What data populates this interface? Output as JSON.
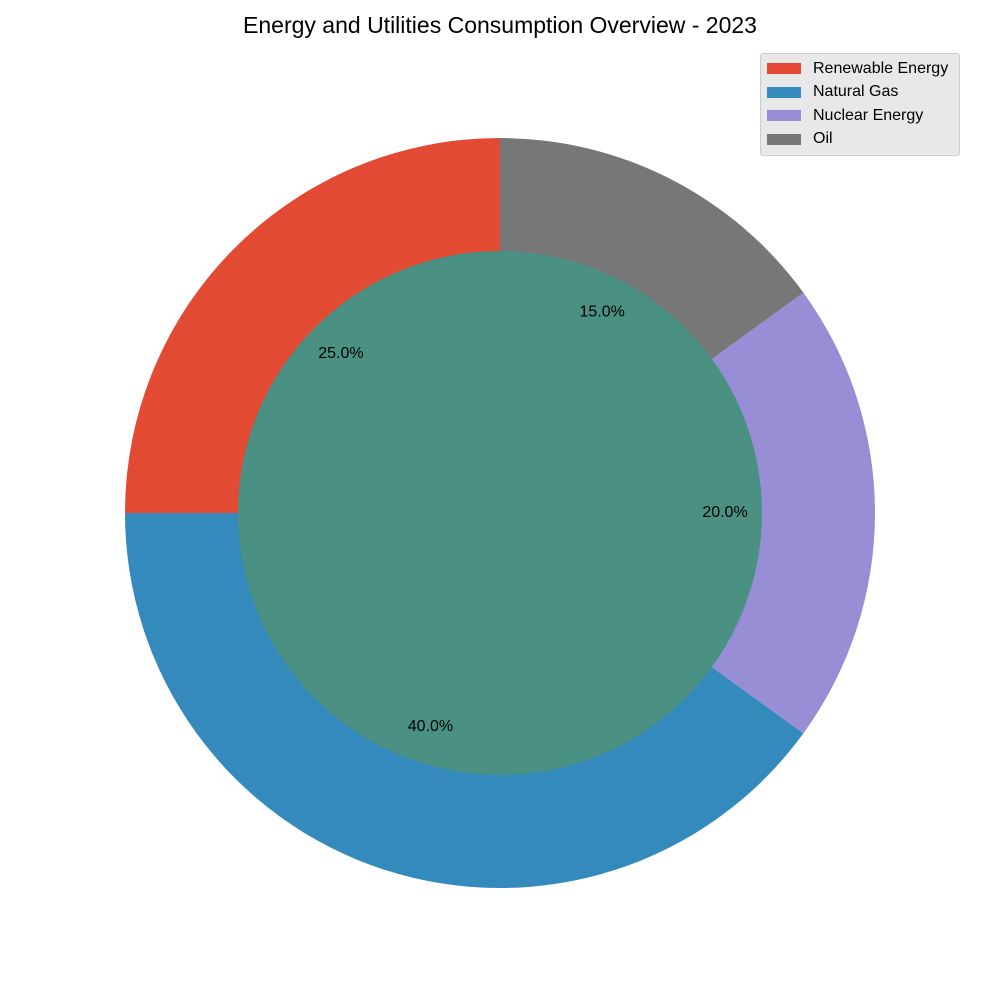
{
  "chart_data": {
    "type": "pie",
    "title": "Energy and Utilities Consumption Overview - 2023",
    "slices": [
      {
        "label": "Renewable Energy",
        "value": 25.0,
        "pct_label": "25.0%",
        "color": "#E24A33"
      },
      {
        "label": "Natural Gas",
        "value": 40.0,
        "pct_label": "40.0%",
        "color": "#348ABD"
      },
      {
        "label": "Nuclear Energy",
        "value": 20.0,
        "pct_label": "20.0%",
        "color": "#988ED5"
      },
      {
        "label": "Oil",
        "value": 15.0,
        "pct_label": "15.0%",
        "color": "#777777"
      }
    ],
    "center_color": "#4A9183",
    "style": "donut",
    "start_angle_deg": 90,
    "direction": "counterclockwise",
    "legend_position": "top-right"
  }
}
